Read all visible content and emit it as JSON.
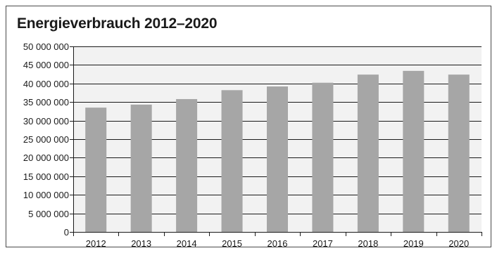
{
  "chart_data": {
    "type": "bar",
    "title": "Energieverbrauch 2012–2020",
    "xlabel": "",
    "ylabel": "",
    "categories": [
      "2012",
      "2013",
      "2014",
      "2015",
      "2016",
      "2017",
      "2018",
      "2019",
      "2020"
    ],
    "values": [
      33500000,
      34300000,
      35800000,
      38200000,
      39200000,
      40200000,
      42400000,
      43400000,
      42400000
    ],
    "ylim": [
      0,
      50000000
    ],
    "yticks": [
      0,
      5000000,
      10000000,
      15000000,
      20000000,
      25000000,
      30000000,
      35000000,
      40000000,
      45000000,
      50000000
    ],
    "ytick_labels": [
      "0",
      "5 000 000",
      "10 000 000",
      "15 000 000",
      "20 000 000",
      "25 000 000",
      "30 000 000",
      "35 000 000",
      "40 000 000",
      "45 000 000",
      "50 000 000"
    ],
    "grid": true,
    "legend": "none",
    "colors": {
      "bar": "#a6a6a6",
      "plot_background": "#f2f2f2",
      "gridline": "#1a1a1a",
      "axis": "#1a1a1a",
      "frame": "#4a4a4a"
    }
  }
}
